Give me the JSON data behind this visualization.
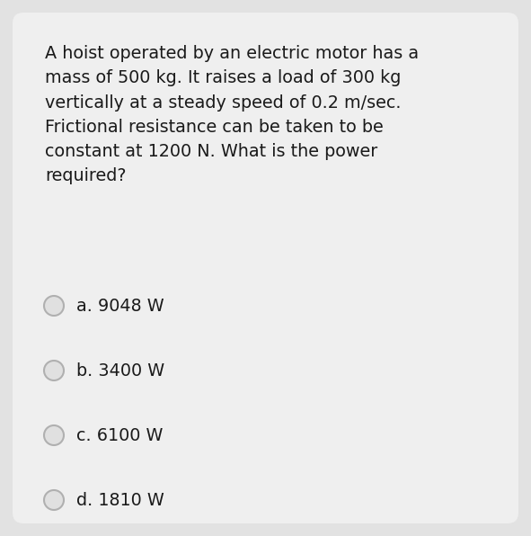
{
  "background_color": "#e2e2e2",
  "card_color": "#efefef",
  "question_text": "A hoist operated by an electric motor has a\nmass of 500 kg. It raises a load of 300 kg\nvertically at a steady speed of 0.2 m/sec.\nFrictional resistance can be taken to be\nconstant at 1200 N. What is the power\nrequired?",
  "options": [
    "a. 9048 W",
    "b. 3400 W",
    "c. 6100 W",
    "d. 1810 W"
  ],
  "text_color": "#1a1a1a",
  "option_text_color": "#1a1a1a",
  "circle_edge_color": "#b0b0b0",
  "circle_fill_color": "#e0e0e0",
  "question_fontsize": 13.8,
  "option_fontsize": 13.8
}
